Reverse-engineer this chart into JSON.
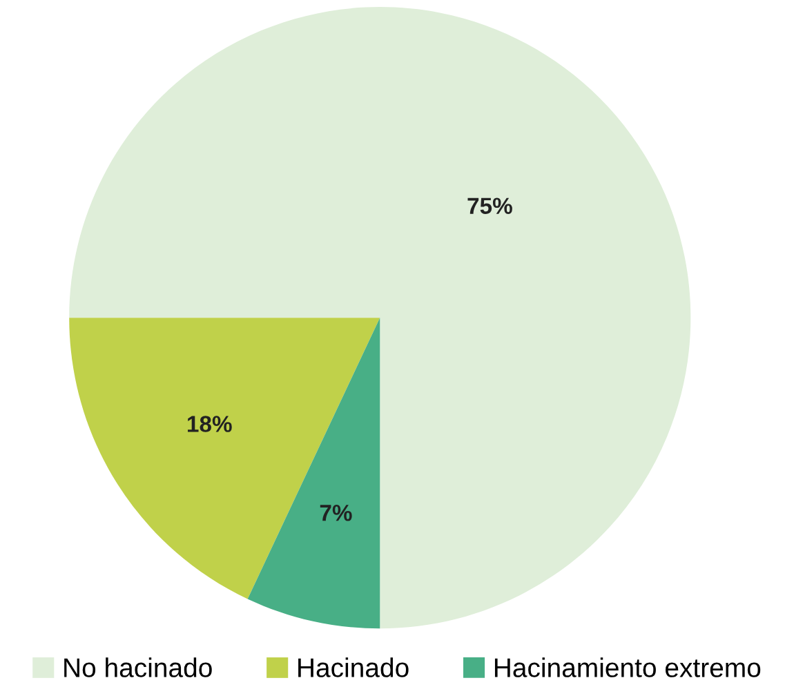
{
  "chart_data": {
    "type": "pie",
    "categories": [
      "No hacinado",
      "Hacinado",
      "Hacinamiento extremo"
    ],
    "values": [
      75,
      18,
      7
    ],
    "colors": [
      "#dfeed9",
      "#c0d14a",
      "#48af86"
    ],
    "value_labels": [
      "75%",
      "18%",
      "7%"
    ],
    "legend": "bottom"
  }
}
